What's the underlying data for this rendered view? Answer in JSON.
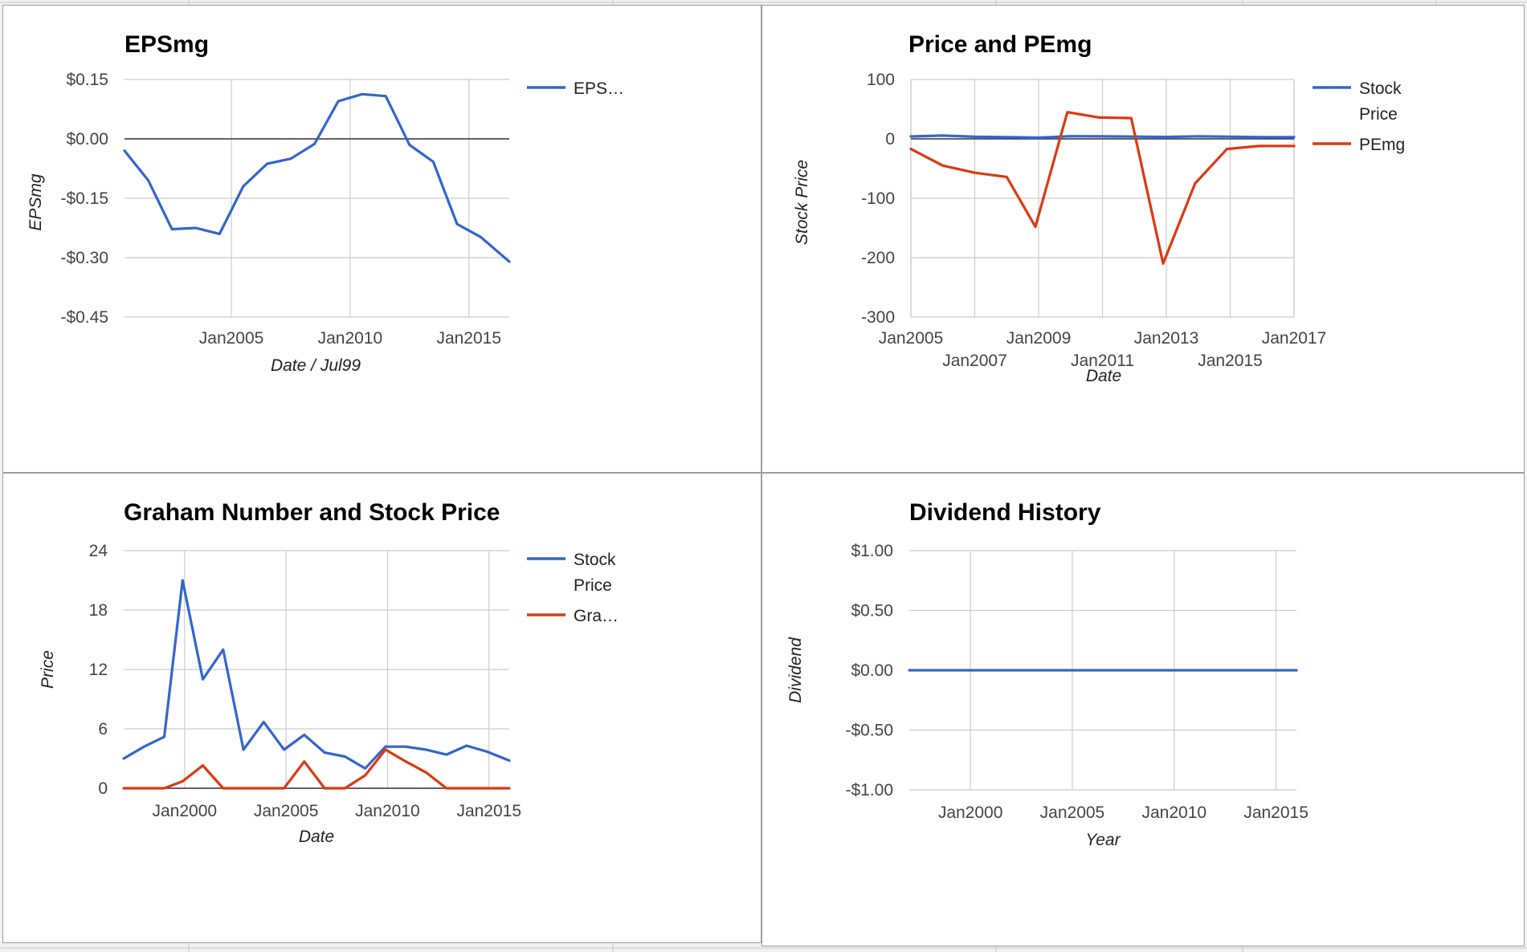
{
  "colors": {
    "blue": "#3366cc",
    "red": "#dc3912"
  },
  "chart_data": [
    {
      "type": "line",
      "title": "EPSmg",
      "xlabel": "Date / Jul99",
      "ylabel": "EPSmg",
      "xlim": [
        2000.5,
        2016.7
      ],
      "ylim": [
        -0.45,
        0.15
      ],
      "x_ticks": [
        {
          "v": 2005,
          "label": "Jan2005"
        },
        {
          "v": 2010,
          "label": "Jan2010"
        },
        {
          "v": 2015,
          "label": "Jan2015"
        }
      ],
      "y_ticks": [
        {
          "v": 0.15,
          "label": "$0.15"
        },
        {
          "v": 0.0,
          "label": "$0.00"
        },
        {
          "v": -0.15,
          "label": "-$0.15"
        },
        {
          "v": -0.3,
          "label": "-$0.30"
        },
        {
          "v": -0.45,
          "label": "-$0.45"
        }
      ],
      "legend": [
        {
          "name": "EPS…",
          "color": "#3366cc"
        }
      ],
      "series": [
        {
          "name": "EPSmg",
          "color": "#3366cc",
          "x": [
            2000.5,
            2001.5,
            2002.5,
            2003.5,
            2004.5,
            2005.5,
            2006.5,
            2007.5,
            2008.5,
            2009.5,
            2010.5,
            2011.5,
            2012.5,
            2013.5,
            2014.5,
            2015.5,
            2016.7
          ],
          "y": [
            -0.03,
            -0.105,
            -0.228,
            -0.225,
            -0.24,
            -0.12,
            -0.063,
            -0.05,
            -0.013,
            0.095,
            0.113,
            0.108,
            -0.015,
            -0.058,
            -0.215,
            -0.248,
            -0.31
          ]
        }
      ]
    },
    {
      "type": "line",
      "title": "Price and PEmg",
      "xlabel": "Date",
      "ylabel": "Stock Price",
      "xlim": [
        2005,
        2017
      ],
      "ylim": [
        -300,
        100
      ],
      "x_ticks": [
        {
          "v": 2005,
          "label": "Jan2005",
          "row": 0
        },
        {
          "v": 2007,
          "label": "Jan2007",
          "row": 1
        },
        {
          "v": 2009,
          "label": "Jan2009",
          "row": 0
        },
        {
          "v": 2011,
          "label": "Jan2011",
          "row": 1
        },
        {
          "v": 2013,
          "label": "Jan2013",
          "row": 0
        },
        {
          "v": 2015,
          "label": "Jan2015",
          "row": 1
        },
        {
          "v": 2017,
          "label": "Jan2017",
          "row": 0
        }
      ],
      "y_ticks": [
        {
          "v": 100,
          "label": "100"
        },
        {
          "v": 0,
          "label": "0"
        },
        {
          "v": -100,
          "label": "-100"
        },
        {
          "v": -200,
          "label": "-200"
        },
        {
          "v": -300,
          "label": "-300"
        }
      ],
      "legend": [
        {
          "name": "Stock",
          "name2": "Price",
          "color": "#3366cc"
        },
        {
          "name": "PEmg",
          "color": "#dc3912"
        }
      ],
      "series": [
        {
          "name": "Stock Price",
          "color": "#3366cc",
          "x": [
            2005,
            2006,
            2007,
            2008,
            2009,
            2010,
            2011,
            2012,
            2013,
            2014,
            2015,
            2016,
            2017
          ],
          "y": [
            4,
            5.5,
            3.5,
            3,
            2,
            4.5,
            4.2,
            3.8,
            3.2,
            4.3,
            3.6,
            3,
            2.8
          ]
        },
        {
          "name": "PEmg",
          "color": "#dc3912",
          "x": [
            2005,
            2006,
            2007,
            2008,
            2008.9,
            2009.9,
            2010.9,
            2011.9,
            2012.9,
            2013.9,
            2014.9,
            2015.9,
            2017
          ],
          "y": [
            -17,
            -45,
            -57,
            -64,
            -148,
            45,
            36,
            35,
            -210,
            -75,
            -17,
            -12,
            -12
          ]
        }
      ]
    },
    {
      "type": "line",
      "title": "Graham Number and Stock Price",
      "xlabel": "Date",
      "ylabel": "Price",
      "xlim": [
        1997,
        2016
      ],
      "ylim": [
        0,
        24
      ],
      "x_ticks": [
        {
          "v": 2000,
          "label": "Jan2000"
        },
        {
          "v": 2005,
          "label": "Jan2005"
        },
        {
          "v": 2010,
          "label": "Jan2010"
        },
        {
          "v": 2015,
          "label": "Jan2015"
        }
      ],
      "y_ticks": [
        {
          "v": 24,
          "label": "24"
        },
        {
          "v": 18,
          "label": "18"
        },
        {
          "v": 12,
          "label": "12"
        },
        {
          "v": 6,
          "label": "6"
        },
        {
          "v": 0,
          "label": "0"
        }
      ],
      "legend": [
        {
          "name": "Stock",
          "name2": "Price",
          "color": "#3366cc"
        },
        {
          "name": "Gra…",
          "color": "#dc3912"
        }
      ],
      "series": [
        {
          "name": "Stock Price",
          "color": "#3366cc",
          "x": [
            1997,
            1998,
            1999,
            1999.9,
            2000.9,
            2001.9,
            2002.9,
            2003.9,
            2004.9,
            2005.9,
            2006.9,
            2007.9,
            2008.9,
            2009.9,
            2010.9,
            2011.9,
            2012.9,
            2013.9,
            2014.9,
            2016
          ],
          "y": [
            3.0,
            4.2,
            5.2,
            21,
            11,
            14,
            3.9,
            6.7,
            3.9,
            5.4,
            3.6,
            3.2,
            2.0,
            4.2,
            4.2,
            3.9,
            3.4,
            4.3,
            3.7,
            2.8
          ]
        },
        {
          "name": "Graham Number",
          "color": "#dc3912",
          "x": [
            1997,
            1998,
            1999,
            1999.9,
            2000.9,
            2001.9,
            2002.9,
            2003.9,
            2004.9,
            2005.9,
            2006.9,
            2007.9,
            2008.9,
            2009.9,
            2010.9,
            2011.9,
            2012.9,
            2013.9,
            2014.9,
            2016
          ],
          "y": [
            0,
            0,
            0,
            0.7,
            2.3,
            0,
            0,
            0,
            0,
            2.7,
            0,
            0,
            1.3,
            3.9,
            2.7,
            1.6,
            0,
            0,
            0,
            0
          ]
        }
      ]
    },
    {
      "type": "line",
      "title": "Dividend History",
      "xlabel": "Year",
      "ylabel": "Dividend",
      "xlim": [
        1997,
        2016
      ],
      "ylim": [
        -1.0,
        1.0
      ],
      "x_ticks": [
        {
          "v": 2000,
          "label": "Jan2000"
        },
        {
          "v": 2005,
          "label": "Jan2005"
        },
        {
          "v": 2010,
          "label": "Jan2010"
        },
        {
          "v": 2015,
          "label": "Jan2015"
        }
      ],
      "y_ticks": [
        {
          "v": 1.0,
          "label": "$1.00"
        },
        {
          "v": 0.5,
          "label": "$0.50"
        },
        {
          "v": 0.0,
          "label": "$0.00"
        },
        {
          "v": -0.5,
          "label": "-$0.50"
        },
        {
          "v": -1.0,
          "label": "-$1.00"
        }
      ],
      "legend": [],
      "series": [
        {
          "name": "Dividend",
          "color": "#3366cc",
          "x": [
            1997,
            2016
          ],
          "y": [
            0,
            0
          ]
        }
      ]
    }
  ]
}
